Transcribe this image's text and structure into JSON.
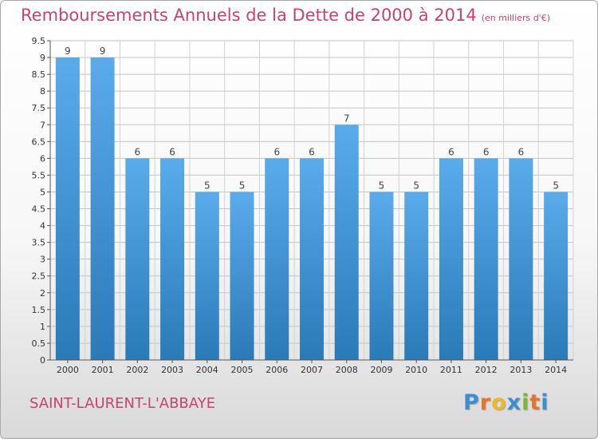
{
  "chart_data": {
    "type": "bar",
    "title": "Remboursements Annuels de la Dette de 2000 à 2014",
    "unit_label": "(en milliers d'€)",
    "categories": [
      "2000",
      "2001",
      "2002",
      "2003",
      "2004",
      "2005",
      "2006",
      "2007",
      "2008",
      "2009",
      "2010",
      "2011",
      "2012",
      "2013",
      "2014"
    ],
    "values": [
      9,
      9,
      6,
      6,
      5,
      5,
      6,
      6,
      7,
      5,
      5,
      6,
      6,
      6,
      5
    ],
    "data_labels": [
      "9",
      "9",
      "6",
      "6",
      "5",
      "5",
      "6",
      "6",
      "7",
      "5",
      "5",
      "6",
      "6",
      "6",
      "5"
    ],
    "ylim": [
      0,
      9.5
    ],
    "yticks": [
      "0",
      "0.5",
      "1",
      "1.5",
      "2",
      "2.5",
      "3",
      "3.5",
      "4",
      "4.5",
      "5",
      "5.5",
      "6",
      "6.5",
      "7",
      "7.5",
      "8",
      "8.5",
      "9",
      "9.5"
    ],
    "grid": true,
    "bar_color_top": "#5aabea",
    "bar_color_bottom": "#2a7ab8"
  },
  "footer": {
    "commune": "SAINT-LAURENT-L'ABBAYE",
    "logo_letters": [
      "P",
      "r",
      "o",
      "x",
      "i",
      "t",
      "i"
    ],
    "logo_colors": [
      "#3a8fd0",
      "#e8742a",
      "#f0b820",
      "#3a8fd0",
      "#7ab828",
      "#e8742a",
      "#3a8fd0"
    ]
  }
}
